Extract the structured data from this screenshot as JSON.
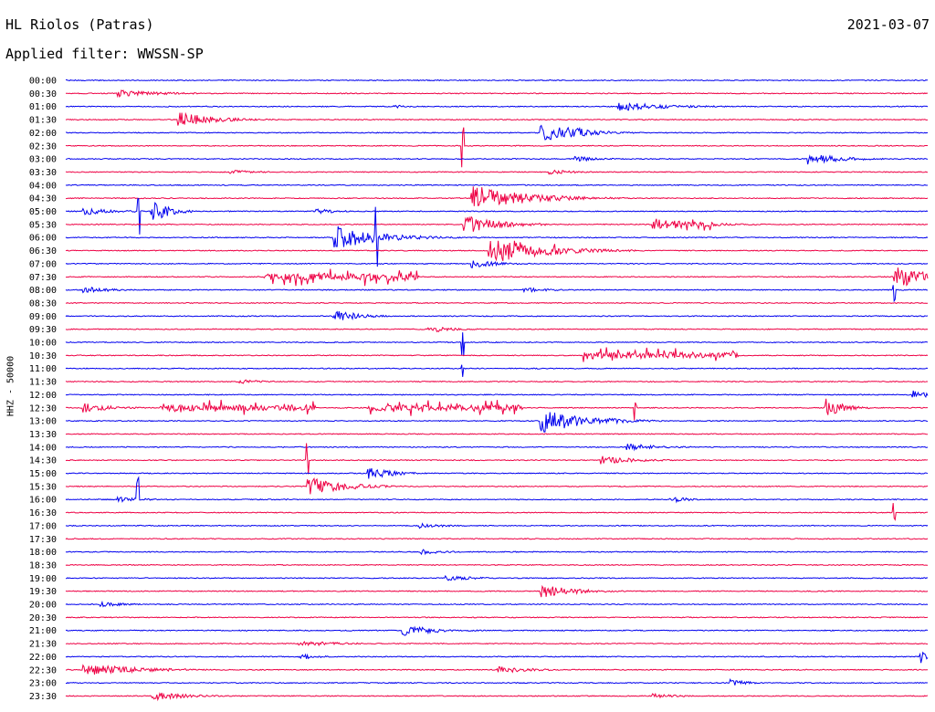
{
  "header": {
    "station": "HL Riolos (Patras)",
    "date": "2021-03-07",
    "filter": "Applied filter: WWSSN-SP"
  },
  "chart_data": {
    "type": "line",
    "title": "HL Riolos (Patras)",
    "ylabel": "HHZ - 50000",
    "colors": {
      "even": "#0000ee",
      "odd": "#ee0044"
    },
    "rows": [
      "00:00",
      "00:30",
      "01:00",
      "01:30",
      "02:00",
      "02:30",
      "03:00",
      "03:30",
      "04:00",
      "04:30",
      "05:00",
      "05:30",
      "06:00",
      "06:30",
      "07:00",
      "07:30",
      "08:00",
      "08:30",
      "09:00",
      "09:30",
      "10:00",
      "10:30",
      "11:00",
      "11:30",
      "12:00",
      "12:30",
      "13:00",
      "13:30",
      "14:00",
      "14:30",
      "15:00",
      "15:30",
      "16:00",
      "16:30",
      "17:00",
      "17:30",
      "18:00",
      "18:30",
      "19:00",
      "19:30",
      "20:00",
      "20:30",
      "21:00",
      "21:30",
      "22:00",
      "22:30",
      "23:00",
      "23:30"
    ],
    "x_range_minutes": [
      0,
      30
    ],
    "events": [
      {
        "row": 1,
        "x": 0.06,
        "amp": 8,
        "dur": 0.05
      },
      {
        "row": 2,
        "x": 0.64,
        "amp": 10,
        "dur": 0.06
      },
      {
        "row": 2,
        "x": 0.38,
        "amp": 4,
        "dur": 0.02
      },
      {
        "row": 3,
        "x": 0.13,
        "amp": 18,
        "dur": 0.04
      },
      {
        "row": 4,
        "x": 0.55,
        "amp": 20,
        "dur": 0.04
      },
      {
        "row": 4,
        "x": 0.58,
        "amp": 16,
        "dur": 0.03
      },
      {
        "row": 6,
        "x": 0.86,
        "amp": 12,
        "dur": 0.04
      },
      {
        "row": 6,
        "x": 0.59,
        "amp": 6,
        "dur": 0.03
      },
      {
        "row": 7,
        "x": 0.19,
        "amp": 5,
        "dur": 0.03
      },
      {
        "row": 7,
        "x": 0.56,
        "amp": 6,
        "dur": 0.03
      },
      {
        "row": 9,
        "x": 0.47,
        "amp": 30,
        "dur": 0.06
      },
      {
        "row": 10,
        "x": 0.02,
        "amp": 8,
        "dur": 0.04
      },
      {
        "row": 10,
        "x": 0.29,
        "amp": 6,
        "dur": 0.03
      },
      {
        "row": 10,
        "x": 0.1,
        "amp": 25,
        "dur": 0.02
      },
      {
        "row": 11,
        "x": 0.68,
        "amp": 14,
        "dur": 0.05
      },
      {
        "row": 11,
        "x": 0.46,
        "amp": 22,
        "dur": 0.04
      },
      {
        "row": 12,
        "x": 0.31,
        "amp": 28,
        "dur": 0.05
      },
      {
        "row": 13,
        "x": 0.49,
        "amp": 30,
        "dur": 0.06
      },
      {
        "row": 14,
        "x": 0.47,
        "amp": 10,
        "dur": 0.03
      },
      {
        "row": 15,
        "x": 0.96,
        "amp": 28,
        "dur": 0.04
      },
      {
        "row": 16,
        "x": 0.02,
        "amp": 8,
        "dur": 0.03
      },
      {
        "row": 16,
        "x": 0.53,
        "amp": 6,
        "dur": 0.03
      },
      {
        "row": 18,
        "x": 0.31,
        "amp": 14,
        "dur": 0.03
      },
      {
        "row": 19,
        "x": 0.42,
        "amp": 8,
        "dur": 0.03
      },
      {
        "row": 21,
        "x": 0.6,
        "amp": 10,
        "dur": 0.04
      },
      {
        "row": 23,
        "x": 0.2,
        "amp": 5,
        "dur": 0.03
      },
      {
        "row": 24,
        "x": 0.98,
        "amp": 12,
        "dur": 0.02
      },
      {
        "row": 25,
        "x": 0.02,
        "amp": 12,
        "dur": 0.03
      },
      {
        "row": 25,
        "x": 0.88,
        "amp": 22,
        "dur": 0.02
      },
      {
        "row": 26,
        "x": 0.55,
        "amp": 28,
        "dur": 0.05
      },
      {
        "row": 28,
        "x": 0.65,
        "amp": 8,
        "dur": 0.04
      },
      {
        "row": 29,
        "x": 0.62,
        "amp": 10,
        "dur": 0.04
      },
      {
        "row": 30,
        "x": 0.35,
        "amp": 14,
        "dur": 0.03
      },
      {
        "row": 31,
        "x": 0.28,
        "amp": 22,
        "dur": 0.04
      },
      {
        "row": 32,
        "x": 0.06,
        "amp": 6,
        "dur": 0.03
      },
      {
        "row": 32,
        "x": 0.7,
        "amp": 8,
        "dur": 0.02
      },
      {
        "row": 34,
        "x": 0.41,
        "amp": 6,
        "dur": 0.03
      },
      {
        "row": 36,
        "x": 0.41,
        "amp": 6,
        "dur": 0.03
      },
      {
        "row": 38,
        "x": 0.44,
        "amp": 6,
        "dur": 0.04
      },
      {
        "row": 39,
        "x": 0.55,
        "amp": 16,
        "dur": 0.04
      },
      {
        "row": 40,
        "x": 0.04,
        "amp": 6,
        "dur": 0.03
      },
      {
        "row": 42,
        "x": 0.39,
        "amp": 12,
        "dur": 0.04
      },
      {
        "row": 43,
        "x": 0.27,
        "amp": 8,
        "dur": 0.04
      },
      {
        "row": 44,
        "x": 0.27,
        "amp": 8,
        "dur": 0.02
      },
      {
        "row": 44,
        "x": 0.99,
        "amp": 18,
        "dur": 0.01
      },
      {
        "row": 45,
        "x": 0.02,
        "amp": 14,
        "dur": 0.06
      },
      {
        "row": 45,
        "x": 0.5,
        "amp": 8,
        "dur": 0.04
      },
      {
        "row": 46,
        "x": 0.77,
        "amp": 8,
        "dur": 0.02
      },
      {
        "row": 47,
        "x": 0.1,
        "amp": 10,
        "dur": 0.04
      },
      {
        "row": 47,
        "x": 0.68,
        "amp": 5,
        "dur": 0.03
      }
    ],
    "boxes": [
      {
        "row": 15,
        "x": 0.23,
        "w": 0.18,
        "amp": 20
      },
      {
        "row": 25,
        "x": 0.11,
        "w": 0.18,
        "amp": 18
      },
      {
        "row": 25,
        "x": 0.35,
        "w": 0.18,
        "amp": 18
      },
      {
        "row": 21,
        "x": 0.6,
        "w": 0.18,
        "amp": 18
      },
      {
        "row": 13,
        "x": 0.52,
        "w": 0.05,
        "amp": 24
      },
      {
        "row": 11,
        "x": 0.7,
        "w": 0.05,
        "amp": 14
      }
    ],
    "spikes": [
      {
        "row": 10,
        "x": 0.085,
        "amp": 150
      },
      {
        "row": 32,
        "x": 0.084,
        "amp": 180
      },
      {
        "row": 10,
        "x": 0.1,
        "amp": 40
      },
      {
        "row": 5,
        "x": 0.46,
        "amp": 60
      },
      {
        "row": 12,
        "x": 0.36,
        "amp": 70
      },
      {
        "row": 22,
        "x": 0.46,
        "amp": 40
      },
      {
        "row": 29,
        "x": 0.28,
        "amp": 40
      },
      {
        "row": 25,
        "x": 0.66,
        "amp": 30
      },
      {
        "row": 16,
        "x": 0.96,
        "amp": 40
      },
      {
        "row": 33,
        "x": 0.96,
        "amp": 40
      },
      {
        "row": 20,
        "x": 0.46,
        "amp": 30
      }
    ]
  }
}
